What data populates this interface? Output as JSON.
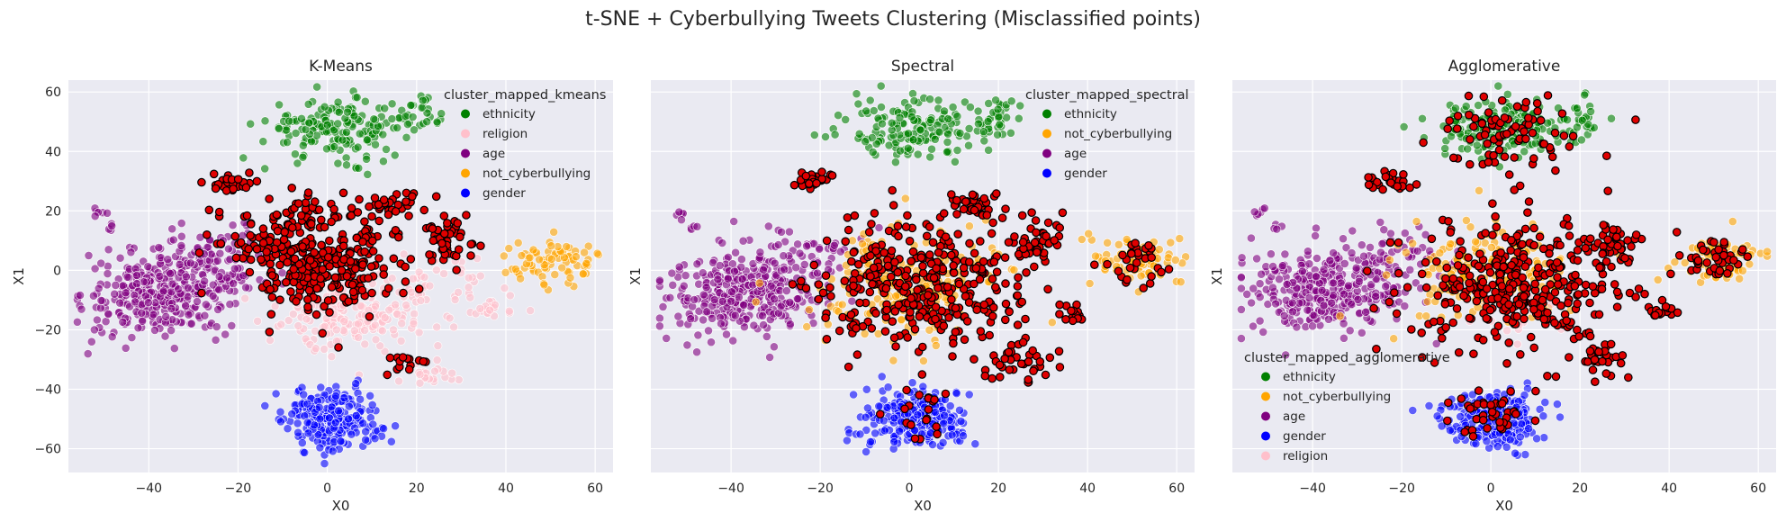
{
  "suptitle": "t-SNE + Cyberbullying Tweets Clustering (Misclassified points)",
  "colors": {
    "ethnicity": "#008000",
    "religion": "#ffc0cb",
    "age": "#800080",
    "not_cyberbullying": "#ffa500",
    "gender": "#0000ff",
    "misclassified": "#e00000",
    "background": "#eaeaf2"
  },
  "chart_data": [
    {
      "type": "scatter",
      "title": "K-Means",
      "xlabel": "X0",
      "ylabel": "X1",
      "xlim": [
        -58,
        64
      ],
      "ylim": [
        -68,
        64
      ],
      "xticks": [
        -40,
        -20,
        0,
        20,
        40,
        60
      ],
      "yticks": [
        -60,
        -40,
        -20,
        0,
        20,
        40,
        60
      ],
      "grid": true,
      "legend": {
        "title": "cluster_mapped_kmeans",
        "placement": "top-right",
        "entries": [
          "ethnicity",
          "religion",
          "age",
          "not_cyberbullying",
          "gender"
        ]
      },
      "clusters": [
        {
          "label": "ethnicity",
          "cx": 2,
          "cy": 48,
          "sx": 8,
          "sy": 5,
          "n": 170
        },
        {
          "label": "ethnicity",
          "cx": 20,
          "cy": 51,
          "sx": 2.5,
          "sy": 3,
          "n": 28
        },
        {
          "label": "age",
          "cx": -38,
          "cy": -8,
          "sx": 8,
          "sy": 7,
          "n": 300
        },
        {
          "label": "age",
          "cx": -25,
          "cy": 2,
          "sx": 7,
          "sy": 7,
          "n": 110
        },
        {
          "label": "age",
          "cx": -51,
          "cy": 19,
          "sx": 1,
          "sy": 1,
          "n": 6
        },
        {
          "label": "age",
          "cx": -48,
          "cy": 14,
          "sx": 0.8,
          "sy": 0.8,
          "n": 4
        },
        {
          "label": "religion",
          "cx": 5,
          "cy": -15,
          "sx": 8,
          "sy": 6,
          "n": 150
        },
        {
          "label": "religion",
          "cx": 22,
          "cy": -8,
          "sx": 9,
          "sy": 7,
          "n": 70
        },
        {
          "label": "religion",
          "cx": 23,
          "cy": -34,
          "sx": 3,
          "sy": 2,
          "n": 20
        },
        {
          "label": "religion",
          "cx": 38,
          "cy": -14,
          "sx": 3,
          "sy": 2,
          "n": 16
        },
        {
          "label": "not_cyberbullying",
          "cx": 51,
          "cy": 3,
          "sx": 5,
          "sy": 4,
          "n": 80
        },
        {
          "label": "gender",
          "cx": 1,
          "cy": -50,
          "sx": 5.5,
          "sy": 5,
          "n": 240
        },
        {
          "label": "misclassified",
          "cx": 0,
          "cy": 3,
          "sx": 9,
          "sy": 9,
          "n": 260
        },
        {
          "label": "misclassified",
          "cx": -13,
          "cy": 10,
          "sx": 7,
          "sy": 6,
          "n": 60
        },
        {
          "label": "misclassified",
          "cx": 15,
          "cy": 22,
          "sx": 3,
          "sy": 2,
          "n": 30
        },
        {
          "label": "misclassified",
          "cx": 27,
          "cy": 9,
          "sx": 3,
          "sy": 4,
          "n": 45
        },
        {
          "label": "misclassified",
          "cx": -22,
          "cy": 30,
          "sx": 2.5,
          "sy": 1.5,
          "n": 28
        },
        {
          "label": "misclassified",
          "cx": 17,
          "cy": -32,
          "sx": 3,
          "sy": 2,
          "n": 14
        },
        {
          "label": "misclassified",
          "cx": -5,
          "cy": 21,
          "sx": 3,
          "sy": 3,
          "n": 20
        }
      ]
    },
    {
      "type": "scatter",
      "title": "Spectral",
      "xlabel": "X0",
      "ylabel": "X1",
      "xlim": [
        -58,
        64
      ],
      "ylim": [
        -68,
        64
      ],
      "xticks": [
        -40,
        -20,
        0,
        20,
        40,
        60
      ],
      "yticks": [
        -60,
        -40,
        -20,
        0,
        20,
        40,
        60
      ],
      "grid": true,
      "legend": {
        "title": "cluster_mapped_spectral",
        "placement": "top-right",
        "entries": [
          "ethnicity",
          "not_cyberbullying",
          "age",
          "gender"
        ]
      },
      "clusters": [
        {
          "label": "ethnicity",
          "cx": 2,
          "cy": 48,
          "sx": 8,
          "sy": 5,
          "n": 170
        },
        {
          "label": "ethnicity",
          "cx": 20,
          "cy": 51,
          "sx": 2.5,
          "sy": 3,
          "n": 28
        },
        {
          "label": "age",
          "cx": -38,
          "cy": -8,
          "sx": 8,
          "sy": 7,
          "n": 300
        },
        {
          "label": "age",
          "cx": -25,
          "cy": 2,
          "sx": 7,
          "sy": 7,
          "n": 90
        },
        {
          "label": "age",
          "cx": -51,
          "cy": 19,
          "sx": 1,
          "sy": 1,
          "n": 6
        },
        {
          "label": "age",
          "cx": -48,
          "cy": 14,
          "sx": 0.8,
          "sy": 0.8,
          "n": 4
        },
        {
          "label": "not_cyberbullying",
          "cx": 0,
          "cy": -5,
          "sx": 10,
          "sy": 9,
          "n": 200
        },
        {
          "label": "not_cyberbullying",
          "cx": 51,
          "cy": 3,
          "sx": 5,
          "sy": 4,
          "n": 80
        },
        {
          "label": "gender",
          "cx": 1,
          "cy": -50,
          "sx": 5.5,
          "sy": 5,
          "n": 240
        },
        {
          "label": "misclassified",
          "cx": 3,
          "cy": -5,
          "sx": 12,
          "sy": 11,
          "n": 330
        },
        {
          "label": "misclassified",
          "cx": 28,
          "cy": 9,
          "sx": 3,
          "sy": 4,
          "n": 45
        },
        {
          "label": "misclassified",
          "cx": 25,
          "cy": -30,
          "sx": 4,
          "sy": 4,
          "n": 40
        },
        {
          "label": "misclassified",
          "cx": -22,
          "cy": 30,
          "sx": 2.5,
          "sy": 1.5,
          "n": 28
        },
        {
          "label": "misclassified",
          "cx": 15,
          "cy": 22,
          "sx": 3,
          "sy": 2,
          "n": 30
        },
        {
          "label": "misclassified",
          "cx": 50,
          "cy": 3,
          "sx": 4,
          "sy": 4,
          "n": 30
        },
        {
          "label": "misclassified",
          "cx": 37,
          "cy": -14,
          "sx": 2,
          "sy": 1.5,
          "n": 14
        },
        {
          "label": "misclassified",
          "cx": 2,
          "cy": -47,
          "sx": 4,
          "sy": 4,
          "n": 20
        }
      ]
    },
    {
      "type": "scatter",
      "title": "Agglomerative",
      "xlabel": "X0",
      "ylabel": "X1",
      "xlim": [
        -58,
        64
      ],
      "ylim": [
        -68,
        64
      ],
      "xticks": [
        -40,
        -20,
        0,
        20,
        40,
        60
      ],
      "yticks": [
        -60,
        -40,
        -20,
        0,
        20,
        40,
        60
      ],
      "grid": true,
      "legend": {
        "title": "cluster_mapped_agglomerative",
        "placement": "lower-left",
        "entries": [
          "ethnicity",
          "not_cyberbullying",
          "age",
          "gender",
          "religion"
        ]
      },
      "clusters": [
        {
          "label": "ethnicity",
          "cx": 2,
          "cy": 48,
          "sx": 8,
          "sy": 5,
          "n": 170
        },
        {
          "label": "ethnicity",
          "cx": 20,
          "cy": 51,
          "sx": 2.5,
          "sy": 3,
          "n": 28
        },
        {
          "label": "age",
          "cx": -38,
          "cy": -8,
          "sx": 8,
          "sy": 7,
          "n": 300
        },
        {
          "label": "age",
          "cx": -25,
          "cy": 2,
          "sx": 7,
          "sy": 7,
          "n": 90
        },
        {
          "label": "age",
          "cx": -51,
          "cy": 19,
          "sx": 1,
          "sy": 1,
          "n": 6
        },
        {
          "label": "age",
          "cx": -48,
          "cy": 14,
          "sx": 0.8,
          "sy": 0.8,
          "n": 4
        },
        {
          "label": "not_cyberbullying",
          "cx": 0,
          "cy": 0,
          "sx": 10,
          "sy": 8,
          "n": 160
        },
        {
          "label": "not_cyberbullying",
          "cx": 51,
          "cy": 3,
          "sx": 5,
          "sy": 4,
          "n": 80
        },
        {
          "label": "gender",
          "cx": 1,
          "cy": -50,
          "sx": 5.5,
          "sy": 5,
          "n": 240
        },
        {
          "label": "religion",
          "cx": 5,
          "cy": -15,
          "sx": 5,
          "sy": 4,
          "n": 20
        },
        {
          "label": "misclassified",
          "cx": 5,
          "cy": -5,
          "sx": 12,
          "sy": 11,
          "n": 340
        },
        {
          "label": "misclassified",
          "cx": 4,
          "cy": 45,
          "sx": 8,
          "sy": 6,
          "n": 80
        },
        {
          "label": "misclassified",
          "cx": 50,
          "cy": 3,
          "sx": 4,
          "sy": 4,
          "n": 40
        },
        {
          "label": "misclassified",
          "cx": 27,
          "cy": 9,
          "sx": 3,
          "sy": 4,
          "n": 45
        },
        {
          "label": "misclassified",
          "cx": 25,
          "cy": -30,
          "sx": 3,
          "sy": 3,
          "n": 30
        },
        {
          "label": "misclassified",
          "cx": -22,
          "cy": 30,
          "sx": 2.5,
          "sy": 1.5,
          "n": 28
        },
        {
          "label": "misclassified",
          "cx": 0,
          "cy": -48,
          "sx": 5,
          "sy": 5,
          "n": 40
        },
        {
          "label": "misclassified",
          "cx": 39,
          "cy": -14,
          "sx": 2,
          "sy": 1.5,
          "n": 14
        }
      ]
    }
  ]
}
